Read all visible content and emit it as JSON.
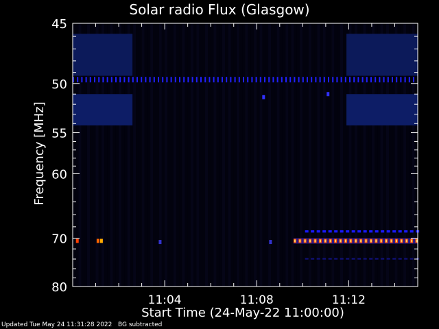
{
  "page": {
    "footer_updated": "Updated Tue May 24 11:31:28 2022",
    "footer_note": "BG subtracted"
  },
  "chart_data": {
    "type": "heatmap",
    "title": "Solar radio Flux (Glasgow)",
    "xlabel": "Start Time (24-May-22 11:00:00)",
    "ylabel": "Frequency [MHz]",
    "x_unit": "minutes after 11:00:00",
    "xlim": [
      0,
      15
    ],
    "ylim": [
      80,
      45
    ],
    "y_scale": "reciprocal",
    "x_ticks": [
      4,
      8,
      12
    ],
    "x_tick_labels": [
      "11:04",
      "11:08",
      "11:12"
    ],
    "y_ticks": [
      45,
      50,
      55,
      60,
      70,
      80
    ],
    "y_tick_labels": [
      "45",
      "50",
      "55",
      "60",
      "70",
      "80"
    ],
    "background": "#000000",
    "features": [
      {
        "name": "band-45-50-early",
        "x": [
          0,
          2.6
        ],
        "f": [
          45.8,
          49.3
        ],
        "color": "#0c1a5a"
      },
      {
        "name": "band-51-54-early",
        "x": [
          0,
          2.6
        ],
        "f": [
          51.0,
          54.2
        ],
        "color": "#0d1d66"
      },
      {
        "name": "band-45-50-late",
        "x": [
          11.9,
          15
        ],
        "f": [
          45.8,
          49.3
        ],
        "color": "#0c1a5a"
      },
      {
        "name": "band-51-54-late",
        "x": [
          11.9,
          15
        ],
        "f": [
          51.0,
          54.2
        ],
        "color": "#0d1d66"
      },
      {
        "name": "line-49.6-dashes",
        "x": [
          0,
          15
        ],
        "f": [
          49.4,
          49.9
        ],
        "color": "#2020ff"
      },
      {
        "name": "line-70.5-burst",
        "x": [
          9.6,
          15
        ],
        "f": [
          70.0,
          71.0
        ],
        "color": "#ff6600"
      },
      {
        "name": "line-68.8-dashes",
        "x": [
          10.1,
          15
        ],
        "f": [
          68.6,
          69.0
        ],
        "color": "#1a1aff"
      },
      {
        "name": "line-74-faint",
        "x": [
          10.1,
          15
        ],
        "f": [
          73.8,
          74.1
        ],
        "color": "#10107a"
      }
    ],
    "spots": [
      {
        "x": 0.2,
        "f": 70.5,
        "color": "#ff4000"
      },
      {
        "x": 1.1,
        "f": 70.5,
        "color": "#ff6600"
      },
      {
        "x": 1.25,
        "f": 70.5,
        "color": "#ffaa00"
      },
      {
        "x": 3.8,
        "f": 70.7,
        "color": "#3333cc"
      },
      {
        "x": 8.6,
        "f": 70.7,
        "color": "#3333cc"
      },
      {
        "x": 8.3,
        "f": 51.3,
        "color": "#3030ff"
      },
      {
        "x": 11.1,
        "f": 51.0,
        "color": "#3030ff"
      }
    ],
    "colorbar": [
      "#000000",
      "#1a1aff",
      "#8a2be2",
      "#ff0000",
      "#ff8c00",
      "#ffff80"
    ]
  }
}
